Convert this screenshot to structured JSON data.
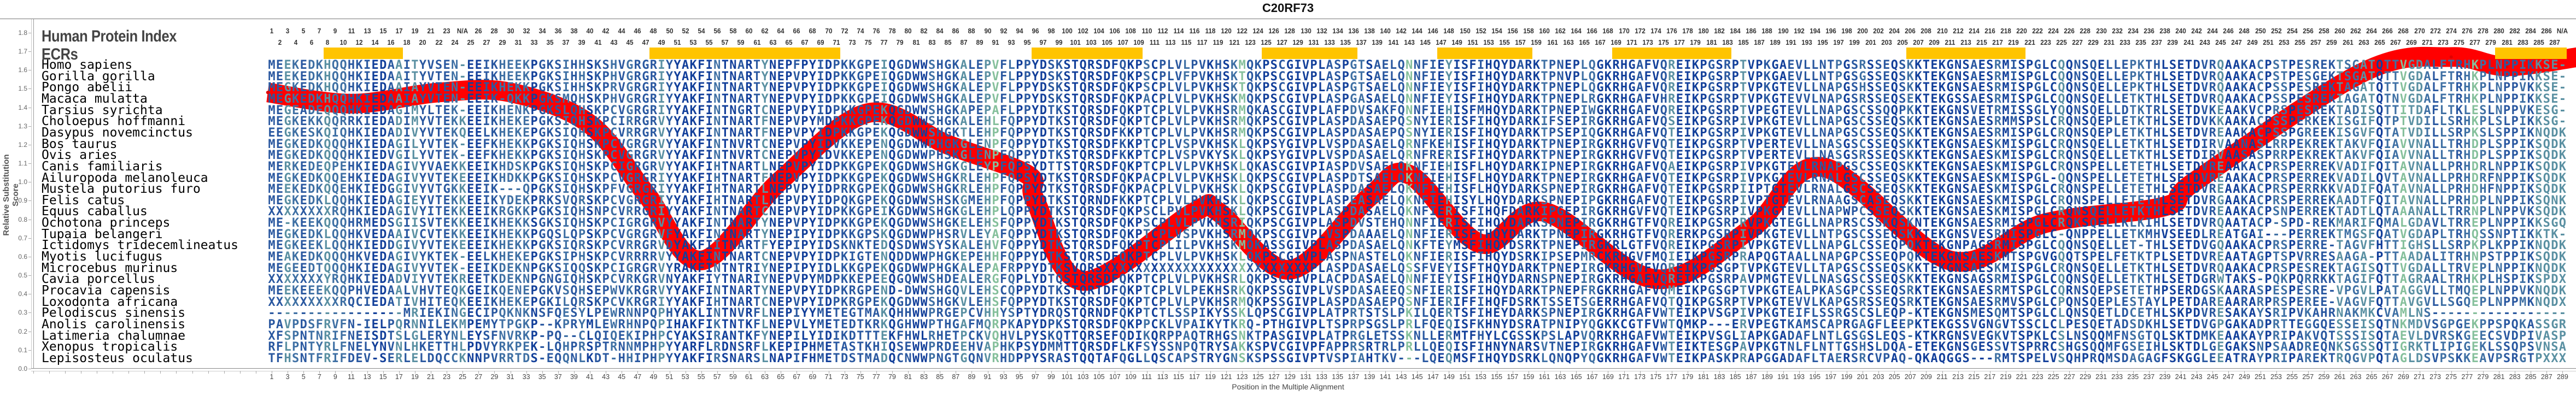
{
  "title": "C20RF73",
  "header": {
    "index_label": "Human Protein Index",
    "ecr_label": "ECRs"
  },
  "colors": {
    "curve": "#ff0000",
    "ecr": "#FFC400",
    "conserved": "#123f9a",
    "variable": "#86c09c"
  },
  "ecr_ranges": [
    [
      8,
      17
    ],
    [
      49,
      72
    ],
    [
      97,
      110
    ],
    [
      126,
      137
    ],
    [
      148,
      159
    ],
    [
      170,
      184
    ],
    [
      207,
      221
    ],
    [
      281,
      289
    ]
  ],
  "top_position_labels": [
    1,
    2,
    3,
    4,
    5,
    6,
    7,
    8,
    9,
    10,
    11,
    12,
    13,
    14,
    15,
    16,
    17,
    18,
    19,
    20,
    21,
    22,
    23,
    24,
    "N/A",
    25,
    26,
    27,
    28,
    29,
    30,
    31,
    32,
    33,
    34,
    35,
    36,
    37,
    38,
    39,
    40,
    41,
    42,
    43,
    44,
    45,
    46,
    47,
    48,
    49,
    50,
    51,
    52,
    53,
    54,
    55,
    56,
    57,
    58,
    59,
    60,
    61,
    62,
    63,
    64,
    65,
    66,
    67,
    68,
    69,
    70,
    71,
    72,
    73,
    74,
    75,
    76,
    77,
    78,
    79,
    80,
    81,
    82,
    83,
    84,
    85,
    86,
    87,
    88,
    89,
    90,
    91,
    92,
    93,
    94,
    95,
    96,
    97,
    98,
    99,
    100,
    101,
    102,
    103,
    104,
    105,
    106,
    107,
    108,
    109,
    110,
    111,
    112,
    113,
    114,
    115,
    116,
    117,
    118,
    119,
    120,
    121,
    122,
    123,
    124,
    125,
    126,
    127,
    128,
    129,
    130,
    131,
    132,
    133,
    134,
    135,
    136,
    137,
    138,
    139,
    140,
    141,
    142,
    143,
    144,
    145,
    146,
    147,
    148,
    149,
    150,
    151,
    152,
    153,
    154,
    155,
    156,
    157,
    158,
    159,
    160,
    161,
    162,
    163,
    164,
    165,
    166,
    167,
    168,
    169,
    170,
    171,
    172,
    173,
    174,
    175,
    176,
    177,
    178,
    179,
    180,
    181,
    182,
    183,
    184,
    185,
    186,
    187,
    188,
    189,
    190,
    191,
    192,
    193,
    194,
    195,
    196,
    197,
    198,
    199,
    200,
    201,
    202,
    203,
    204,
    205,
    206,
    207,
    208,
    209,
    210,
    211,
    212,
    213,
    214,
    215,
    216,
    217,
    218,
    219,
    220,
    221,
    222,
    223,
    224,
    225,
    226,
    227,
    228,
    229,
    230,
    231,
    232,
    233,
    234,
    235,
    236,
    237,
    238,
    239,
    240,
    241,
    242,
    243,
    244,
    245,
    246,
    247,
    248,
    249,
    250,
    251,
    252,
    253,
    254,
    255,
    256,
    257,
    258,
    259,
    260,
    261,
    262,
    263,
    264,
    265,
    266,
    267,
    268,
    269,
    270,
    271,
    272,
    273,
    274,
    275,
    276,
    277,
    278,
    279,
    280,
    281,
    282,
    283,
    284,
    285,
    286,
    287,
    "N/A"
  ],
  "alignment": [
    {
      "species": "Homo sapiens",
      "seq": "MEEKEDKHQQHKIEDAAITYVSEN-EEIKHEEKPGKSIHHSKSHVGRGRIYYAKFINTNARTYNEPFPYIDPKKGPEIQGDWWSHGKALEPVFLPPYDSKSTQRSDFQKPSCPLVLPVKHSKMQKPSCGIVPLASPGTSAELQNNFIEYISFIHQYDARKTPNEPLQGKRHGAFVQREIKPGSRPTVPKGAEVLLNTPGSRSSEQSKKTEKGNSAESRMISPGLCQQNSQELLEPKTHLSETDVRQAAKACPSTPESREKTSGATQTTVGDALFTRHKPLNPPIKKSE-"
    },
    {
      "species": "Gorilla gorilla",
      "seq": "MEEKEDKHQQHKIEDAAITYVTEN-EEIKHEEKPGKSIHHSKPHVGRGRIYYAKFINTNARTYNEPVPYIDPKKGPEIQGDWWSHGKALEPVFLPPYDSKSTQRSDFQKPSCPLVFPVKHSKTQKPSCGIVPLASPGTSAELQNNFIEYISFIHQYDARKTPNVPLQGKRHGAFVQREIKPGSRPTVPKGAEVLLNTPGSGSSEQSKKTEKGNSAESRMISPGLCQQNSQELLEPKTHLSETDVRQAAKACPSTPESGEKTSGATQTTVGDALFTRHKPLNPPIKKSE-"
    },
    {
      "species": "Pongo abelii",
      "seq": "MEGKEDKHQQHKIEDAAIAYVTEN-EEIKHEKKPGKSIHHSKPRVGRGRIYYAKFINTNARTYNEPVPYIDPKKGPEIQGDWWSHGKALEPVFLPPYDSKSTQRSDFQKPSCPLVLPVKHSKTQKPSCGIVPLASPGTSAELQNNFIEYISFIHQYDARKTPNEPLQGKRHGAFVQREIKPGSRPTVPKGTEVLLNAPGSHSSEQSKKTEKGNSAESRMISPGLCQQNSQELLEPKTHLSETDVRQAAKACPSSPESREKTAGATQTTVGDALFTRHKPLNPPVKKSE-"
    },
    {
      "species": "Macaca mulatta",
      "seq": "MEGKEDKHQQHKIEDAAIAYVTEN-EEIK-QKKPGKSMQHSKPHVGRGRIYYAKFINTNARTYNEPVPYIDPKKGPEIQGDWWSHGKALEPVFLPPYDSKSTQRSDFQKPACPLVLPVKHSKMQKPSCGIVPLASPGASAELQNNFIEYISFIHQYDARKTPNEPLRGKRHGAFVHREIKPGSRPTVPKGTEVVLNAPGSRSSEQSEKTEKGSSAESRMISPGLCQQNSQELLETKTHLSETDVRQAAKACPSSPESREKIAGATQTNVGDALFTRHKPLNPPIKKSE-"
    },
    {
      "species": "Tarsius syrichta",
      "seq": "MEGEADEQQQHKIEDAGIMYLTEK-EEIKHENKPGKSLQHSKPCVGRGRIYYAKFINTNGRTCNEPVPYIDPKKGPEKQGDWWSHGKAPEPAFLPPYDTKSTQRSDFQKPTCPLVLPVKHSRMQKASCGIVPLAFPDVSAKFQNNFIEHISFMHQYDARKTPNEPIWGKRHGAFVQREIKPGSRPTVPEGTEVLLNAPGSCSSQQPKKTEKGNSVETRMISSGLYQQNSQELLDTKTRLSETDVKEAAKVCPRSPESREKTADISQTTITDAFLTKLESLNPPVKESG-"
    },
    {
      "species": "Choloepus hoffmanni",
      "seq": "MEGKEKKQQRRKIEDADIMYVTEKKEEIKHEKEPGKSIQHSKPCIRRGRVYYAKFINTNARTFNEPVPYMDPKKGPEKQGDWWSHGKALEHLFQPPYDTKSTQRSDFQKPTCPLVLPVKHSRMQKPSCGIVPLASPDASAEPQSNYIERISFIHQYDARKIFSEPIRGKRHGAFVQSEIKPGSRPIVPKGTEVLLNAPGSCSSEQSKKTEKGNSAESRMMSPSLCRQNSQEPLETKTHLSETDVKKAAKACPSSPERKEKISGIFQTPTVDILLSRHKPLSLPIKKSG-"
    },
    {
      "species": "Dasypus novemcinctus",
      "seq": "EEGKESKQIQHKIEDADIVYVTEKQEELKHEKEPGKSIQHSKPCVRRGRVYYAKFINTNARTFNEPVPYIDPKKGPEKQGDWWSHGKTLEHPFQPPYDTKSTQRSDFKKPTCPLVLPVKHSRMQKPSCGIVPLASPDASAEPQSNYIERISFIHQYDARKTPSEPIQGKRHGAFVQTEIKPGSRPIVPKGTEVLLNAPGSCSSEQSKKTEKGNSAESRMISPGLCRQNSQEPLETKTHLSETDVREAAKACPSSPGREEKISGVFQTATVDILLSRPKSLSPPIKNQDK"
    },
    {
      "species": "Bos taurus",
      "seq": "MEGKEDKQQQHKIEDAGILYVTEK-EEFKHEKKPGKSIQHSKPCVGRGRVYYAKFINTNVRTCNEPVPYIDVKKEPENQGDWWPHGKGLENPFQPPYDTKSTQRSDFKKPTCPLVSPVKHSKLQKPSYGIVPLVSPDASAELQRNFKEHISFIHQYDARKTPNEPIRGKRHGVFVQTEIKPGSRPTVPERTEVLLNASGSCSSEQSKKTEKGNSAESKMISPGLCRQNSQELLETKTHLSETDIRVAANASLRRPEKREKTAKVFQIAVVNALLTRHDPLSPPIKSQDK"
    },
    {
      "species": "Ovis aries",
      "seq": "MEGKEDKQQQHKIEDVGILYVTEK-EEFKHEKKPGKSIQHSKPCVGRGRVYYAKFINTNVRTCNEPVPYIDVKKEPENQGDWWPHSKGLENPFQPPYDTKSTQRSDFKKPTCPLVSPVKYSKLQKPSYGIVPLVSPDASAELQRNFRERISFIHQYDARKTPNEPIRGKRHGVFVQTEIKPGSRPTVPERTEVLLNASGSRSSEQSKKTEKGNSAESKMISPGLCRQNSQELLETKTHLSETDIRVAASASPRRPEKREKTAKVFQIAVVNALLTRHDPLSPPIKSQDK"
    },
    {
      "species": "Canis familiaris",
      "seq": "MERKEDEQPEHKIEDAGIVYVAEKKEEIKHDSKPGKSIQHSKPCIGRGRVYYAKFIHTNARTLNEPVPYIDPKKGPEKQGDWWSHGKGLEYPFQPSYDTTSTQRSDFQKPTCPLVLPVKHSKLQKASCGIVPIASPDVSAELQKNFIEHISFLHQYDARKIPNEPIRGKRHGAFVQAEIKPGSRPIVPKGTEVLRNAPGSCSSEQSKKTEKGNSAESKMISPGLCRQNSPELLETETHLSETDVREAAKACPRSPERREKVADIFQITAVNALLPRHDRLNPPIKSQDK"
    },
    {
      "species": "Ailuropoda melanoleuca",
      "seq": "MEGKEDKQQEHKIEDAGIVYVTEKEEEIKHDKKPGKSIQHSKPCVGRGRIYYAKFIHTNARTFNEPVPYIDPKKGPEKQGDWWSHGKRLEHPFQPSYDTKSTQRSDFQKPACPLVLPVKHSKLQKPSCGIVPLASPDTSAELQKNFIEHISFLHQYDARKTPNEPIRGKRHGAFVQTEIKPGSRPIVPKGTEVLRNALGSCSSEQSKKTEKGNSAESKMISPGL-QQNSPELLETETHLSETDVREAAKACPRSPERREKVADILQVTAVNALLPRHDRFNPPIKSQDK"
    },
    {
      "species": "Mustela putorius furo",
      "seq": "MEEKEDKQQEHKIEDGGIVYVTGKKEEIK---QPGKSIQHSKPFVGRGRIYYAKFIHTNARTLNEPVPYIDPRKGPEKQGDWWSHGKRLEHPFQPPYDTKSTQRSDFQKPACPLVLPVKHSKLQKPSCGIVPLASPDASAELQKNFIEHISFLHQYDARKSPNEPIRGKRHGAFVQTEIKPGSRPIIPTGTEVLRNALGSCSSEQSKKTEKGNSAESKMISPGLCRQNSPELLETETHLSETDVREAAKACPRSPERRKKVADIFQATAVNALLPRHDHFNPPIKSQDK"
    },
    {
      "species": "Felis catus",
      "seq": "MEGKEDKLQQHKIEDAGIEYVTEKKEEIKYDEKPRKSVQRSKPCVGRGRIYYAKFIHTNARTLNEPVPYIDPQKGPEKQGDWWSHSKGMEHPFQPPYDTKSTQRNDFKKPTCPLVLPVKHSKLQKPSCGIVPLASPEASAELQKNFIEHISYLHQYDARKSPNEPIPGKRHGAFVQTEIKPGSRPIVPTGTEVLRNAAGSCASEQSKKTEKGNSAESKMISPGLCRQNSPELLETETHLSETDVRGAAKACPRSPERREKAADTFQITAVNALLPRHDPLNPPIKSQNK"
    },
    {
      "species": "Equus caballus",
      "seq": "XXXXXXXXRQHKIEDAGIVYITEKKEEIKRGKKPGKSIQHSNPCVRRGRIYYAKFINTNARTCNEPVPYIDPKKGPEIKGDWWSHGKGLEHPLQPPYDTKSTQRSDFQKPSCLPVLPVKHSKLQKPSCGIVPLASPDASAELQKNFIERISFIHQFDARKIPGEPIRGKRHGVFVQTEIKPGSRPIVPKGTEVLLNAPWPCSSEQSKKTEKGNSAESKMISPGLCRQNSQELLETKTHLSETDVREAAKACPSNPERREKTADTLQTAAANALLTRRNPLNPPVKSQDK"
    },
    {
      "species": "Ochotona princeps",
      "seq": "ME-KEEKQQQHRMEDSGIISVTEKKEEIKHEKKSGKSIQHSKPCIGRGRVYYAKFINTNARTYNEPVPYIDPKKGPEKQGDWWSHGKELEHSFQPPYDTKSTQRSDFQKPSCPLVLPVKHSRIQKPSCGIVPLASPDVSTEHQNNFIERISFIHQYDARKSPNEPIRGKRHGTFVQREIKPGSRPRVPKGTEGLLNAPRSCSSKQSKNTEKGNSAESRMISPGLCRQKSQELLKLKIHLSETDVRQAATACP-SPD-REKMARIFQMALGDAVLTRREPLNPPIKKSGQ"
    },
    {
      "species": "Tupaia belangeri",
      "seq": "MEGKEDKLQQHKVEDAAIVCVTEKKEEIKHEKKPGQSLQPSKPCVGRGRVFYAKFINTNARTYNEPIPYIDPKKGPSKQGDWWPHSRVLEYAFQPPYDTKSTQRSDFQKPTCPLVSPVKHSRMQKPSCGIVPLVSPDAAAELQNNFIERISFTHQYDARKTPNEPIRGKRHGTFVQRERKPGSRPIVPKGTEVLLNTPGSCSSEQSKKTEKGNSVESRMISPGLC-QNPPELLETKMHVSEEDLREATGAI---PERREKTMGSFQATVGDAPLTRHQSSNPTIKKTK-"
    },
    {
      "species": "Ictidomys tridecemlineatus",
      "seq": "MEGKEEKLQQHKIEDDGIVYVTEKEEEIKHEKKPGKSIQRSKPCVRRGRVDYAKFIITNARTFYEPIPYIDSKNKTEDQSDWWSYSKALEHVFQPPYDTKSTQRSDFQKPTCPLILPVKHSKMQKASSGIVPLASPDASAELQNKFTEYMSFIHQYDSRKTPNEPIRGKRLGTFVQREIKPGSRPIVPKGTEVLLNAPGLCSSEQPQKTEKGNPAGSRMISPGLCQQNSQELLET-THLSETDVGQAAKACPRSPERRE-TAGVFHTTIGHSLLSRPKPLKPPIKNQDK"
    },
    {
      "species": "Myotis lucifugus",
      "seq": "MEAKEDKQQQHKVEDAGIVYKTEK-EELKHEKEPGKSIPHSKPCVRRRRVYYAKFINTNARTCNEPVPYIDPKIGTENQDDWWPHGKEPEHHFQPPYDTKSTQRSDFQKPTCPLVLPVKHSKLQKPSCGIVPLASPNASTELQKNFIERISFIHQYDSRKIPSEPMRCKRHGVFMQIEIKPGSRPRAPQGTAALLNAPGPCSSEQPQKTEKGNSAESKMTSPGVGQQTSPELFETKTPLSETDVREAATAGPTSPVRRESAAGA-PTTAADALITRHNPSTPPIKSQDK"
    },
    {
      "species": "Microcebus murinus",
      "seq": "MEGEEDTQQQHKIEDAGIVYVTEK-EEIKDEKNPGKSIQQSKPCIGRGRVYRAKFINTNTRIYNEPIPYIDLKKGPEKQGDWWPHGKALEPAFRPPYDTKSVQRSXXXXXXXXXXXXXXXXXXXXXXXXXXPLASPDASAELQSSFVEYISFTHQYDARKTPNEPIRGKRHGVFVQREIKPGSGPTVPKGTEVLLTAPGSCSSEQSKKTEKGNSAESKMISPGLCRQNSQELLETKTHLSETDVRQAAKACPRSPESREKTAGISQTTVGDALLTRVEPLNPPIKNQDK"
    },
    {
      "species": "Cavia porcellus",
      "seq": "XXXXXXXYRQHKIEDADVIYVTEKREETKDEKNPGNGIQHSKPCVRKGRVNYAKFIYTNARIYNEPVPYMDPKKEPEEQGQWWSHDEALERGFQPLYDTQSTQRSDFQKPTCPLVLPVKHSRLQKPSCGIVPLACPDASAELQNNFIEYISFIHQYDARNSPNEPIRGKRHGAFVQREIKPGSRPAVPMGTEVLLNASGSCSSEQSKKTEKGNSAGSRMISPGLCQQNSQELLETKTHLSETDGRWTAKS-PQKPQRRKKTAGIFQTTAGRAALTRHKPLHSPIKSPDX"
    },
    {
      "species": "Procavia capensis",
      "seq": "MEEKEEEKQQPHVEDAALVHVTEQKGEIKQENEPGKVSQHSEPWVKRGRVYYAKFINTNARTYNEPVPYIDPKRGPEND-DWWSHGQVLEHSCQPPYDTKSTQRTDFQKPTCPLVLPEKHSRKQKPSSGIVPLVSPDASAEEQSNFIERISFIHQYDARKTPNEPFRGKRHGAFVQMEIKPGSGPTVPKGTEALPKASGPCSSEQSRKTEKGNSAESRMTSPGLCQRNSQEPSETETHPSERDGSKAARASPESPESRE-VPGVLPATAGGVLLTMQEPLNPPVKNQDK"
    },
    {
      "species": "Loxodonta africana",
      "seq": "XXXXXXXXXRQCIEDATIVHITEQKEEIKHEKEPGKILQRSKPCVKRGRIYYAKFIHTNARTCNEPVPYIDPKRGPEKQGDWWSHGKVLEHSFQPPYDTKSTQRSDFQKPTCPLVLPVKHSRMQKPSSGIVPLASPDASAEPQSNFIERIFFIHQFDSRKTSSETSGERRHGAFVQTQIKPGSRPTVPKGTEVVLKAPGSRSSEQSRKTEKGNSAESRMVSPGLCPQNSQEPLESTAYLPETDAREAARARPRSPEREE-VAGVFQTTAVGVLLSGQEPLNPPMKNQDX"
    },
    {
      "species": "Pelodiscus sinensis",
      "seq": "-----------------MRIEKINGECIPQKNKNSFQESYLPEWRNNPQPHYAKLINTNVRFLNEPIYYMETEGTMAKQHHWWPRGEPCVHHYSPTYDRQSTQRNDFQKPTCTLSSPIKYSSKLQPSCGIVPLATPRTSTSLPKILQERTSFIHEYDARKSPNEPIRGKRHGAFVWTEIKPVSGPIVPKGTEIFLSSRGSCSLEQP-KTEKGNSMESQMTSPGLCLQNSQETLDCETHLSKPDVRESAKAYSRIPVKAHRNAKMKCVAMLNS-----------------"
    },
    {
      "species": "Anolis carolinensis",
      "seq": "PAVPDSFRVFN-IELPQRNNILEKMPEMYTPGKP--KPRYMLEWRHNPQPIHAKFIKTNTKFLNEPVLYMETEDTKRKQGHWWPTHGAFMQRPKAPYDPKSTQRSDFQKPPCKLVPAIKYTKRQ-PTHGIVPLTSPRPSGSLPRLFQEQISFKHNYDSRATPNIPYQGKKCGTFVWTQMKP---ERVPEGTKAMSCAPRGAGFLEEPKTEKGSSVGNGVTSSCLCLPESQETADSDKHLSETDVGPGAKADPRTTEGGQESSEISQTNKMDVSGPGEKPPSPQKASSGR"
    },
    {
      "species": "Latimeria chalumnae",
      "seq": "XFSPNTNRIFNEISDTSLGLERYNLEYSFNVRKP-PQ--CLQIQEKIPHPCYAKSIRANTKFYNEPILYIDIKDTTTEKFHWLRHETPCKVQHVLPYSKQTTQRSEFQDIKQRPPAQTRHGSNKTPASGIVPLATPRGLETSSKNLLERMTFHYLCGSSKPSLAPVQRKRHGAFVWTEIKPVSGLIAPKGADAFLNTLGSGSLEQS-KTKRGNSVEGKVTSPKLCSLNSQQMFNSGTQLSKTDMKEAAKAYPRIPAKVQTSSSISQTAEVLDVRSKGEECSVDPIVASP"
    },
    {
      "species": "Xenopus tropicalis",
      "seq": "RFLPNTYRLFNELYNVNLHKETTHLPDVYRKPEK-LQHPRSPTRNNMPHPYYARFLRDNSRFLKEPIPHMETASTKHIQSEWWPRDEEHVAPHKPSYDMMTTQRSDFLKFSYSSNPQTRYSAKKSPVCGIVPFAPPRSRTRLPRLLQEQISFIHNYNARSVTNEPIRGKRHGAFVWTEIKTESGPAVPKGTNLFLNTTGSHSLDQA-ETEKGNSGESSVTSPRRCSHGSQQMFGSEIHLSKTDLGEGAKSNPSAADREQNKSGSSQTIGRKTLIPIGEKLSSQPSVNSA"
    },
    {
      "species": "Lepisosteus oculatus",
      "seq": "TFHSNTFRIFDEV-SERLELDQCCKNNPVRRTDS-EQQNLKDT-HHIPHPYYAKFIRSNARSLNAPIFHMETDSTMADQCNWWPNGTGQNVRHDPPYSRASTQQTAFQGLLQSCAPSTRYGNSKSPSSGIVPTVSPIAHTKV---LQEQMSFIHQYDSRKLQNQPYQGKRHGAFVWTEIKPASKPRAPGGADAFLTAERSRCVPAQ-QKAQGGS---RMTSPELVSQHPRQMSDAGAGFSKGGLEEATRAYPRIPAREKTRQGVPQTAGLDSVPSKKEAVPSRGTPXXX"
    }
  ],
  "chart_data": {
    "type": "line",
    "title": "C20RF73",
    "xlabel": "Position in the Multiple Alignment",
    "ylabel": "Relative Substitution Score",
    "ylim": [
      0.0,
      1.8
    ],
    "yticks": [
      "0.0",
      "0.1",
      "0.2",
      "0.3",
      "0.4",
      "0.5",
      "0.6",
      "0.7",
      "0.8",
      "0.9",
      "1.0",
      "1.1",
      "1.2",
      "1.3",
      "1.4",
      "1.5",
      "1.6",
      "1.7",
      "1.8"
    ],
    "xlim": [
      1,
      289
    ],
    "xtick_labels": [
      1,
      3,
      5,
      7,
      9,
      11,
      13,
      15,
      17,
      19,
      21,
      23,
      25,
      27,
      29,
      31,
      33,
      35,
      37,
      39,
      41,
      43,
      45,
      47,
      49,
      51,
      53,
      55,
      57,
      59,
      61,
      63,
      65,
      67,
      69,
      71,
      73,
      75,
      77,
      79,
      81,
      83,
      85,
      87,
      89,
      91,
      93,
      95,
      97,
      99,
      101,
      103,
      105,
      107,
      109,
      111,
      113,
      115,
      117,
      119,
      121,
      123,
      125,
      127,
      129,
      131,
      133,
      135,
      137,
      139,
      141,
      143,
      145,
      147,
      149,
      151,
      153,
      155,
      157,
      159,
      161,
      163,
      165,
      167,
      169,
      171,
      173,
      175,
      177,
      179,
      181,
      183,
      185,
      187,
      189,
      191,
      193,
      195,
      197,
      199,
      201,
      203,
      205,
      207,
      209,
      211,
      213,
      215,
      217,
      219,
      221,
      223,
      225,
      227,
      229,
      231,
      233,
      235,
      237,
      239,
      241,
      243,
      245,
      247,
      249,
      251,
      253,
      255,
      257,
      259,
      261,
      263,
      265,
      267,
      269,
      271,
      273,
      275,
      277,
      279,
      281,
      283,
      285,
      287,
      289
    ],
    "grid": false,
    "series": [
      {
        "color": "#ff0000",
        "x": [
          0.5,
          11,
          22,
          31,
          41,
          48,
          55,
          65,
          76,
          86,
          96,
          97,
          103,
          117,
          120,
          129,
          139,
          144,
          153,
          161,
          175,
          187,
          196,
          212,
          224,
          239,
          243,
          264,
          275,
          282,
          291
        ],
        "y": [
          1.48,
          1.42,
          1.48,
          1.48,
          1.31,
          0.94,
          0.58,
          1.01,
          1.37,
          1.2,
          1.04,
          0.9,
          0.47,
          0.84,
          0.84,
          0.53,
          0.92,
          1.04,
          0.67,
          0.84,
          0.48,
          0.75,
          1.08,
          0.58,
          0.78,
          0.87,
          1.01,
          1.59,
          1.67,
          1.62,
          1.67
        ]
      }
    ]
  }
}
